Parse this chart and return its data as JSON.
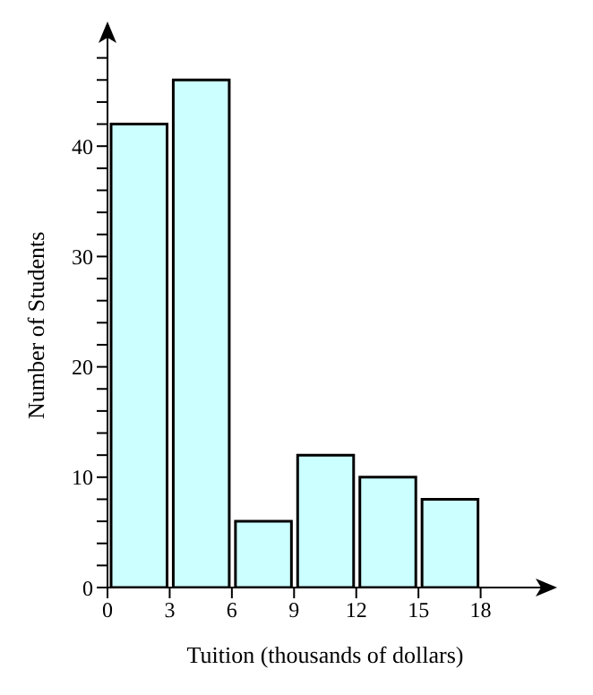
{
  "chart_data": {
    "type": "histogram",
    "xlabel": "Tuition (thousands of dollars)",
    "ylabel": "Number of Students",
    "bins": [
      0,
      3,
      6,
      9,
      12,
      15,
      18
    ],
    "values": [
      42,
      46,
      6,
      12,
      10,
      8
    ],
    "color": "#ccffff",
    "xlim": [
      0,
      21
    ],
    "xticks": [
      0,
      3,
      6,
      9,
      12,
      15,
      18
    ],
    "ylim": [
      0,
      50
    ],
    "yticks": [
      0,
      {
        "value": 2,
        "label": null
      },
      {
        "value": 4,
        "label": null
      },
      {
        "value": 6,
        "label": null
      },
      {
        "value": 8,
        "label": null
      },
      10,
      {
        "value": 12,
        "label": null
      },
      {
        "value": 14,
        "label": null
      },
      {
        "value": 16,
        "label": null
      },
      {
        "value": 18,
        "label": null
      },
      20,
      {
        "value": 22,
        "label": null
      },
      {
        "value": 24,
        "label": null
      },
      {
        "value": 26,
        "label": null
      },
      {
        "value": 28,
        "label": null
      },
      30,
      {
        "value": 32,
        "label": null
      },
      {
        "value": 34,
        "label": null
      },
      {
        "value": 36,
        "label": null
      },
      {
        "value": 38,
        "label": null
      },
      40,
      {
        "value": 42,
        "label": null
      },
      {
        "value": 44,
        "label": null
      },
      {
        "value": 46,
        "label": null
      },
      {
        "value": 48,
        "label": null
      }
    ],
    "grid": false
  }
}
